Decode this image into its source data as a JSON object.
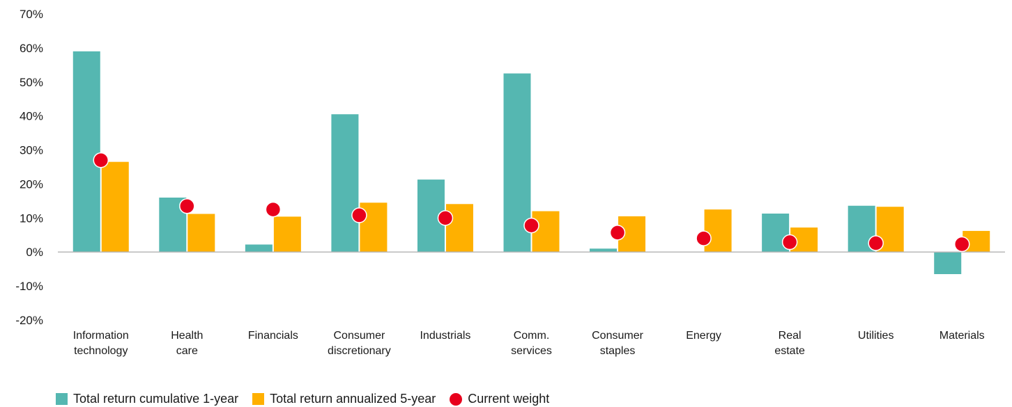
{
  "chart_data": {
    "type": "bar",
    "title": "",
    "xlabel": "",
    "ylabel": "",
    "ylim": [
      -20,
      70
    ],
    "yticks": [
      70,
      60,
      50,
      40,
      30,
      20,
      10,
      0,
      -10,
      -20
    ],
    "ytick_labels": [
      "70%",
      "60%",
      "50%",
      "40%",
      "30%",
      "20%",
      "10%",
      "0%",
      "-10%",
      "-20%"
    ],
    "categories": [
      [
        "Information",
        "technology"
      ],
      [
        "Health",
        "care"
      ],
      [
        "Financials"
      ],
      [
        "Consumer",
        "discretionary"
      ],
      [
        "Industrials"
      ],
      [
        "Comm.",
        "services"
      ],
      [
        "Consumer",
        "staples"
      ],
      [
        "Energy"
      ],
      [
        "Real",
        "estate"
      ],
      [
        "Utilities"
      ],
      [
        "Materials"
      ]
    ],
    "series": [
      {
        "name": "Total return cumulative 1-year",
        "kind": "bar",
        "color": "#55b7b1",
        "values": [
          59.0,
          16.0,
          2.2,
          40.5,
          21.3,
          52.5,
          1.0,
          0.0,
          11.3,
          13.6,
          -6.5
        ]
      },
      {
        "name": "Total return annualized 5-year",
        "kind": "bar",
        "color": "#ffb000",
        "values": [
          26.5,
          11.2,
          10.4,
          14.5,
          14.1,
          12.0,
          10.5,
          12.5,
          7.2,
          13.3,
          6.2
        ]
      },
      {
        "name": "Current weight",
        "kind": "point",
        "color": "#e8001c",
        "values": [
          27.0,
          13.5,
          12.5,
          10.8,
          10.0,
          7.8,
          5.7,
          4.0,
          2.9,
          2.6,
          2.3
        ]
      }
    ],
    "grid": false,
    "legend_position": "bottom-left"
  }
}
